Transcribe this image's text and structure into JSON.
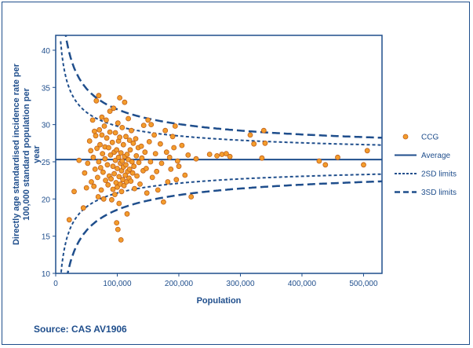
{
  "chart_data": {
    "type": "scatter",
    "title": "",
    "xlabel": "Population",
    "ylabel": "Directly age standardised incidence rate per 100,000 standard population per year",
    "xlim": [
      0,
      530000
    ],
    "ylim": [
      10,
      42
    ],
    "xticks": [
      0,
      100000,
      200000,
      300000,
      400000,
      500000
    ],
    "xtick_labels": [
      "0",
      "100,000",
      "200,000",
      "300,000",
      "400,000",
      "500,000"
    ],
    "yticks": [
      10,
      15,
      20,
      25,
      30,
      35,
      40
    ],
    "ytick_labels": [
      "10",
      "15",
      "20",
      "25",
      "30",
      "35",
      "40"
    ],
    "grid": false,
    "legend_position": "right",
    "average": 25.3,
    "legend": [
      {
        "label": "CCG",
        "style": "marker"
      },
      {
        "label": "Average",
        "style": "solid"
      },
      {
        "label": "2SD limits",
        "style": "dotted"
      },
      {
        "label": "3SD limits",
        "style": "dashed"
      }
    ],
    "colors": {
      "marker_fill": "#f39c2c",
      "marker_edge": "#c0601a",
      "line": "#1f4e8c"
    },
    "series": [
      {
        "name": "CCG",
        "points": [
          [
            22000,
            17.2
          ],
          [
            30000,
            21.0
          ],
          [
            38000,
            25.2
          ],
          [
            45000,
            18.8
          ],
          [
            47000,
            23.5
          ],
          [
            50000,
            21.5
          ],
          [
            52000,
            24.8
          ],
          [
            55000,
            27.8
          ],
          [
            57000,
            26.5
          ],
          [
            58000,
            22.3
          ],
          [
            60000,
            30.6
          ],
          [
            61000,
            25.6
          ],
          [
            62000,
            21.7
          ],
          [
            63000,
            29.1
          ],
          [
            64000,
            24.0
          ],
          [
            65000,
            28.5
          ],
          [
            66000,
            33.2
          ],
          [
            67000,
            26.8
          ],
          [
            68000,
            22.9
          ],
          [
            69000,
            20.3
          ],
          [
            70000,
            33.9
          ],
          [
            70000,
            25.0
          ],
          [
            71000,
            29.3
          ],
          [
            72000,
            27.3
          ],
          [
            73000,
            24.2
          ],
          [
            74000,
            21.2
          ],
          [
            75000,
            31.0
          ],
          [
            75000,
            28.6
          ],
          [
            76000,
            26.1
          ],
          [
            77000,
            23.6
          ],
          [
            78000,
            20.0
          ],
          [
            79000,
            29.8
          ],
          [
            80000,
            27.0
          ],
          [
            80000,
            25.4
          ],
          [
            81000,
            22.5
          ],
          [
            82000,
            30.6
          ],
          [
            83000,
            28.2
          ],
          [
            84000,
            24.6
          ],
          [
            85000,
            21.9
          ],
          [
            86000,
            26.9
          ],
          [
            87000,
            23.1
          ],
          [
            88000,
            31.8
          ],
          [
            88000,
            29.0
          ],
          [
            89000,
            25.9
          ],
          [
            90000,
            22.7
          ],
          [
            91000,
            19.9
          ],
          [
            92000,
            27.6
          ],
          [
            93000,
            24.4
          ],
          [
            93000,
            21.3
          ],
          [
            94000,
            32.2
          ],
          [
            95000,
            26.3
          ],
          [
            95000,
            23.4
          ],
          [
            96000,
            20.6
          ],
          [
            97000,
            28.9
          ],
          [
            97000,
            25.2
          ],
          [
            98000,
            22.2
          ],
          [
            99000,
            16.8
          ],
          [
            99000,
            26.6
          ],
          [
            100000,
            24.1
          ],
          [
            100000,
            21.6
          ],
          [
            101000,
            30.2
          ],
          [
            101000,
            15.9
          ],
          [
            102000,
            27.8
          ],
          [
            102000,
            25.6
          ],
          [
            103000,
            23.0
          ],
          [
            103000,
            19.4
          ],
          [
            104000,
            33.6
          ],
          [
            104000,
            28.3
          ],
          [
            105000,
            24.8
          ],
          [
            105000,
            22.0
          ],
          [
            106000,
            26.2
          ],
          [
            106000,
            14.5
          ],
          [
            107000,
            23.8
          ],
          [
            107000,
            21.0
          ],
          [
            108000,
            29.6
          ],
          [
            108000,
            25.1
          ],
          [
            109000,
            22.6
          ],
          [
            110000,
            27.3
          ],
          [
            110000,
            24.3
          ],
          [
            111000,
            21.8
          ],
          [
            112000,
            33.0
          ],
          [
            112000,
            25.7
          ],
          [
            113000,
            23.2
          ],
          [
            114000,
            28.4
          ],
          [
            114000,
            24.6
          ],
          [
            115000,
            22.3
          ],
          [
            116000,
            26.0
          ],
          [
            116000,
            18.0
          ],
          [
            117000,
            23.7
          ],
          [
            118000,
            30.8
          ],
          [
            118000,
            25.3
          ],
          [
            119000,
            22.8
          ],
          [
            120000,
            27.9
          ],
          [
            120000,
            24.0
          ],
          [
            121000,
            26.6
          ],
          [
            122000,
            22.4
          ],
          [
            123000,
            29.2
          ],
          [
            124000,
            25.0
          ],
          [
            125000,
            23.5
          ],
          [
            126000,
            27.5
          ],
          [
            127000,
            24.4
          ],
          [
            128000,
            21.4
          ],
          [
            130000,
            28.1
          ],
          [
            131000,
            25.8
          ],
          [
            132000,
            23.1
          ],
          [
            134000,
            26.9
          ],
          [
            135000,
            24.9
          ],
          [
            137000,
            22.0
          ],
          [
            139000,
            27.1
          ],
          [
            140000,
            25.5
          ],
          [
            142000,
            23.8
          ],
          [
            143000,
            29.9
          ],
          [
            145000,
            26.3
          ],
          [
            147000,
            24.1
          ],
          [
            148000,
            20.8
          ],
          [
            150000,
            30.6
          ],
          [
            152000,
            27.7
          ],
          [
            154000,
            25.0
          ],
          [
            155000,
            30.0
          ],
          [
            157000,
            22.9
          ],
          [
            160000,
            28.6
          ],
          [
            162000,
            26.1
          ],
          [
            164000,
            23.7
          ],
          [
            166000,
            21.2
          ],
          [
            170000,
            27.4
          ],
          [
            172000,
            24.8
          ],
          [
            175000,
            19.6
          ],
          [
            178000,
            29.2
          ],
          [
            180000,
            26.3
          ],
          [
            182000,
            22.3
          ],
          [
            185000,
            25.6
          ],
          [
            187000,
            24.0
          ],
          [
            190000,
            28.4
          ],
          [
            192000,
            26.9
          ],
          [
            194000,
            29.8
          ],
          [
            196000,
            22.6
          ],
          [
            198000,
            25.1
          ],
          [
            200000,
            24.4
          ],
          [
            205000,
            27.2
          ],
          [
            210000,
            23.2
          ],
          [
            215000,
            25.9
          ],
          [
            220000,
            20.3
          ],
          [
            228000,
            25.4
          ],
          [
            250000,
            26.0
          ],
          [
            262000,
            25.8
          ],
          [
            270000,
            26.0
          ],
          [
            277000,
            26.1
          ],
          [
            283000,
            25.7
          ],
          [
            316000,
            28.6
          ],
          [
            322000,
            27.4
          ],
          [
            335000,
            25.5
          ],
          [
            338000,
            29.2
          ],
          [
            340000,
            27.5
          ],
          [
            428000,
            25.1
          ],
          [
            438000,
            24.6
          ],
          [
            458000,
            25.6
          ],
          [
            500000,
            24.6
          ],
          [
            506000,
            26.5
          ]
        ]
      },
      {
        "name": "Average",
        "formula": "average"
      },
      {
        "name": "2SD limits",
        "formula": "average ± 2*sqrt(average*100000/population)/sqrt(years)"
      },
      {
        "name": "3SD limits",
        "formula": "average ± 3*sqrt(average*100000/population)/sqrt(years)"
      }
    ]
  },
  "footer": {
    "source": "Source: CAS AV1906"
  }
}
